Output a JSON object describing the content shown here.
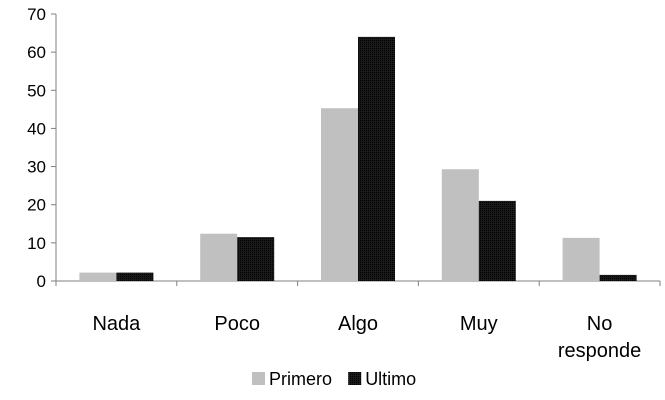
{
  "chart_data": {
    "type": "bar",
    "categories": [
      "Nada",
      "Poco",
      "Algo",
      "Muy",
      "No responde"
    ],
    "category_lines": [
      [
        "Nada"
      ],
      [
        "Poco"
      ],
      [
        "Algo"
      ],
      [
        "Muy"
      ],
      [
        "No",
        "responde"
      ]
    ],
    "series": [
      {
        "name": "Primero",
        "values": [
          2.2,
          12.4,
          45.3,
          29.3,
          11.3
        ],
        "color": "#c0c0c0"
      },
      {
        "name": "Ultimo",
        "values": [
          2.2,
          11.5,
          64.0,
          21.0,
          1.6
        ],
        "color": "#111111"
      }
    ],
    "yticks": [
      0,
      10,
      20,
      30,
      40,
      50,
      60,
      70
    ],
    "ylim": [
      0,
      70
    ],
    "title": "",
    "xlabel": "",
    "ylabel": "",
    "grid": false,
    "legend_position": "bottom"
  }
}
